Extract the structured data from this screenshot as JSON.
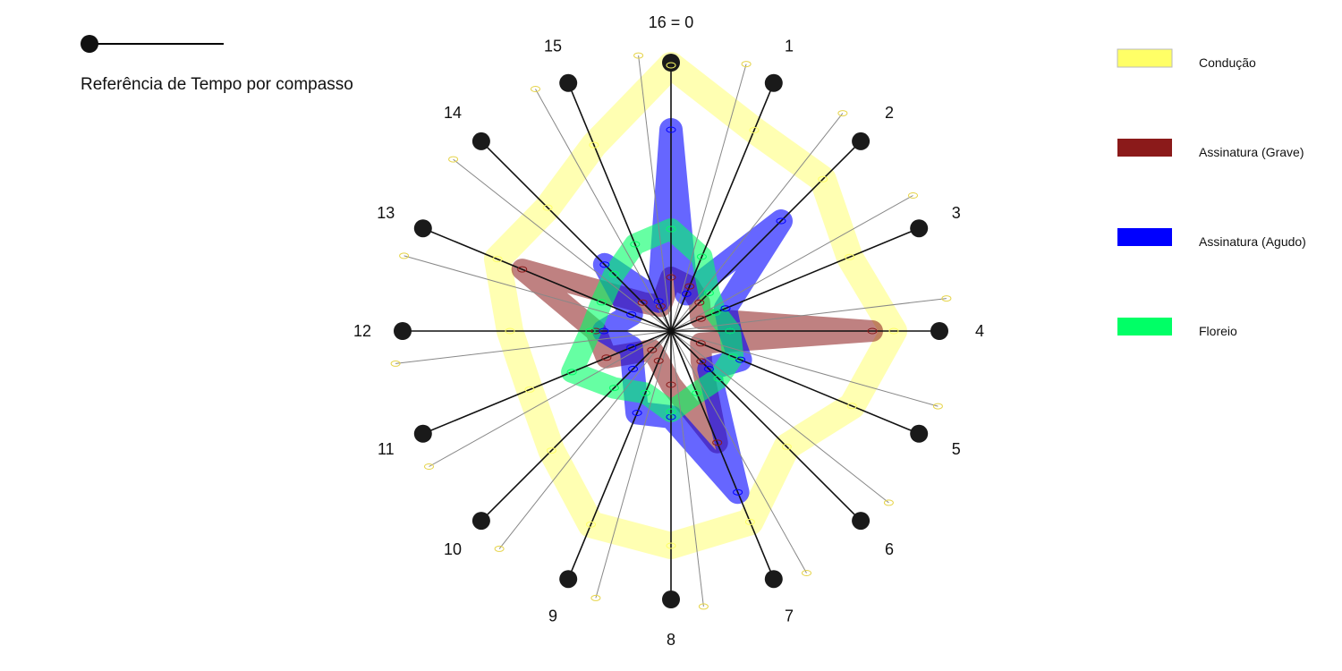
{
  "reference": {
    "label": "Referência de Tempo por compasso"
  },
  "clock": {
    "labels": [
      "16 = 0",
      "1",
      "2",
      "3",
      "4",
      "5",
      "6",
      "7",
      "8",
      "9",
      "10",
      "11",
      "12",
      "13",
      "14",
      "15"
    ]
  },
  "legend": [
    {
      "key": "conducao",
      "label": "Condução",
      "color": "#ffff66"
    },
    {
      "key": "grave",
      "label": "Assinatura (Grave)",
      "color": "#8b1a1a"
    },
    {
      "key": "agudo",
      "label": "Assinatura (Agudo)",
      "color": "#0000ff"
    },
    {
      "key": "floreio",
      "label": "Floreio",
      "color": "#00ff66"
    }
  ],
  "chart_data": {
    "type": "radar",
    "steps": 16,
    "series": [
      {
        "name": "Condução",
        "color": "#ffff66",
        "values": [
          0.99,
          0.81,
          0.8,
          0.72,
          0.83,
          0.73,
          0.61,
          0.77,
          0.8,
          0.78,
          0.63,
          0.57,
          0.6,
          0.7,
          0.65,
          0.75
        ]
      },
      {
        "name": "Assinatura (Grave)",
        "color": "#8b1a1a",
        "values": [
          0.2,
          0.18,
          0.15,
          0.12,
          0.75,
          0.12,
          0.16,
          0.45,
          0.2,
          0.12,
          0.1,
          0.26,
          0.28,
          0.6,
          0.15,
          0.1
        ]
      },
      {
        "name": "Assinatura (Agudo)",
        "color": "#0000ff",
        "values": [
          0.75,
          0.15,
          0.58,
          0.22,
          0.22,
          0.28,
          0.2,
          0.65,
          0.32,
          0.33,
          0.2,
          0.16,
          0.25,
          0.16,
          0.35,
          0.12
        ]
      },
      {
        "name": "Floreio",
        "color": "#00ff66",
        "values": [
          0.38,
          0.3,
          0.2,
          0.18,
          0.22,
          0.25,
          0.25,
          0.25,
          0.3,
          0.25,
          0.3,
          0.4,
          0.3,
          0.28,
          0.3,
          0.35
        ]
      }
    ]
  }
}
